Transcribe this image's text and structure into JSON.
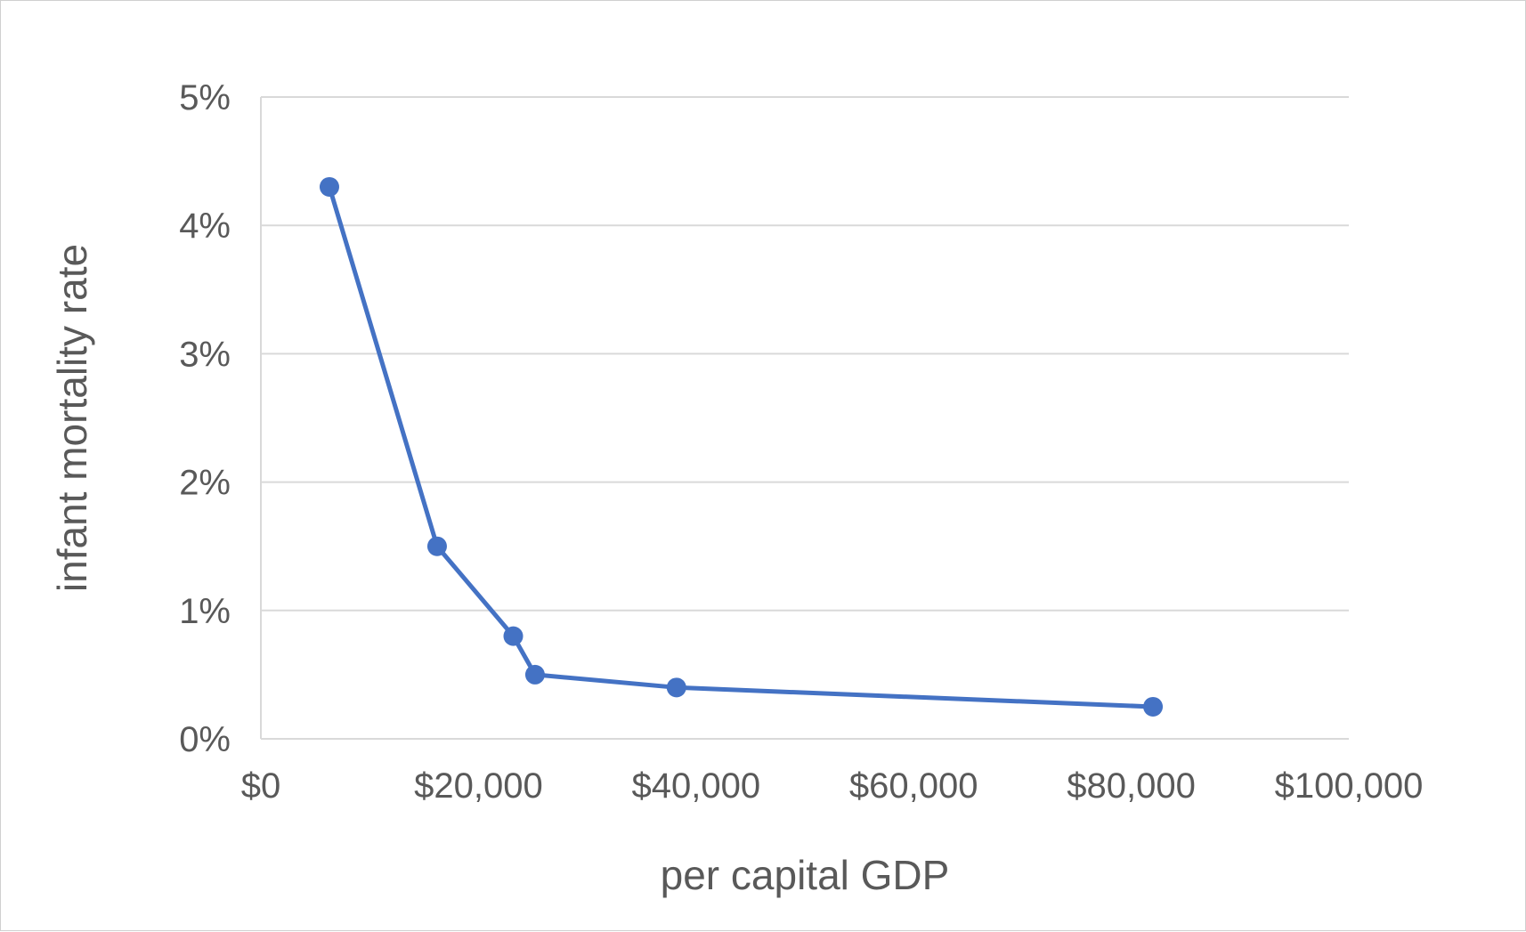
{
  "chart_data": {
    "type": "scatter",
    "title": "",
    "xlabel": "per capital GDP",
    "ylabel": "infant mortality rate",
    "xlim": [
      0,
      100000
    ],
    "ylim": [
      0,
      5
    ],
    "x_ticks": [
      "$0",
      "$20,000",
      "$40,000",
      "$60,000",
      "$80,000",
      "$100,000"
    ],
    "y_ticks": [
      "0%",
      "1%",
      "2%",
      "3%",
      "4%",
      "5%"
    ],
    "grid": "horizontal",
    "legend": "none",
    "line_color": "#4472C4",
    "series": [
      {
        "x": [
          6300,
          16200,
          23200,
          25200,
          38200,
          82000
        ],
        "y": [
          4.3,
          1.5,
          0.8,
          0.5,
          0.4,
          0.25
        ],
        "markers": true,
        "connected": true
      }
    ]
  }
}
